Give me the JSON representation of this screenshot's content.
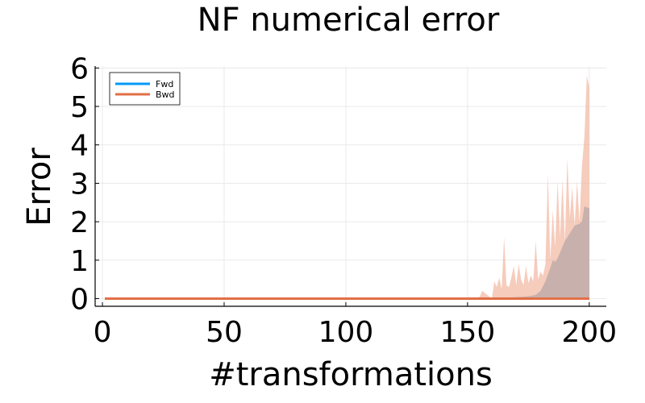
{
  "chart_data": {
    "type": "area",
    "title": "NF numerical error",
    "xlabel": "#transformations",
    "ylabel": "Error",
    "xlim": [
      -3,
      207
    ],
    "ylim": [
      -0.2,
      6.05
    ],
    "xticks": [
      0,
      50,
      100,
      150,
      200
    ],
    "yticks": [
      0,
      1,
      2,
      3,
      4,
      5,
      6
    ],
    "grid": true,
    "legend_position": "top-left",
    "series": [
      {
        "name": "Fwd",
        "color": "#009af9",
        "band_color": "#7fb2d4",
        "line": [
          [
            1,
            0.0
          ],
          [
            200,
            0.0
          ]
        ],
        "band_upper": [
          [
            1,
            0.0
          ],
          [
            154,
            0.0
          ],
          [
            160,
            0.0
          ],
          [
            165,
            0.02
          ],
          [
            170,
            0.04
          ],
          [
            173,
            0.05
          ],
          [
            176,
            0.07
          ],
          [
            178,
            0.1
          ],
          [
            180,
            0.2
          ],
          [
            182,
            0.45
          ],
          [
            184,
            0.8
          ],
          [
            185,
            1.0
          ],
          [
            186,
            0.95
          ],
          [
            187,
            1.05
          ],
          [
            188,
            1.2
          ],
          [
            190,
            1.5
          ],
          [
            192,
            1.7
          ],
          [
            194,
            1.9
          ],
          [
            196,
            1.95
          ],
          [
            197,
            2.0
          ],
          [
            198,
            2.4
          ],
          [
            200,
            2.35
          ]
        ]
      },
      {
        "name": "Bwd",
        "color": "#e26f46",
        "band_color": "#f0aa8f",
        "line": [
          [
            1,
            0.0
          ],
          [
            200,
            0.0
          ]
        ],
        "band_upper": [
          [
            1,
            0.0
          ],
          [
            153,
            0.0
          ],
          [
            155,
            0.05
          ],
          [
            156,
            0.2
          ],
          [
            157,
            0.15
          ],
          [
            158,
            0.1
          ],
          [
            159,
            0.05
          ],
          [
            160,
            0.0
          ],
          [
            161,
            0.45
          ],
          [
            162,
            0.3
          ],
          [
            163,
            0.55
          ],
          [
            164,
            0.25
          ],
          [
            165,
            1.6
          ],
          [
            166,
            0.35
          ],
          [
            167,
            0.3
          ],
          [
            168,
            0.55
          ],
          [
            169,
            0.85
          ],
          [
            170,
            0.35
          ],
          [
            171,
            0.9
          ],
          [
            172,
            0.5
          ],
          [
            173,
            0.35
          ],
          [
            174,
            0.85
          ],
          [
            175,
            0.4
          ],
          [
            176,
            0.6
          ],
          [
            177,
            0.45
          ],
          [
            178,
            1.5
          ],
          [
            179,
            0.5
          ],
          [
            180,
            0.7
          ],
          [
            181,
            0.6
          ],
          [
            182,
            0.9
          ],
          [
            183,
            3.25
          ],
          [
            184,
            1.0
          ],
          [
            185,
            2.3
          ],
          [
            186,
            1.35
          ],
          [
            187,
            3.05
          ],
          [
            188,
            1.6
          ],
          [
            189,
            3.1
          ],
          [
            190,
            1.5
          ],
          [
            191,
            3.65
          ],
          [
            192,
            2.1
          ],
          [
            193,
            2.9
          ],
          [
            194,
            1.9
          ],
          [
            195,
            3.05
          ],
          [
            196,
            2.0
          ],
          [
            197,
            3.45
          ],
          [
            198,
            4.2
          ],
          [
            199,
            5.8
          ],
          [
            200,
            5.5
          ]
        ]
      }
    ]
  }
}
